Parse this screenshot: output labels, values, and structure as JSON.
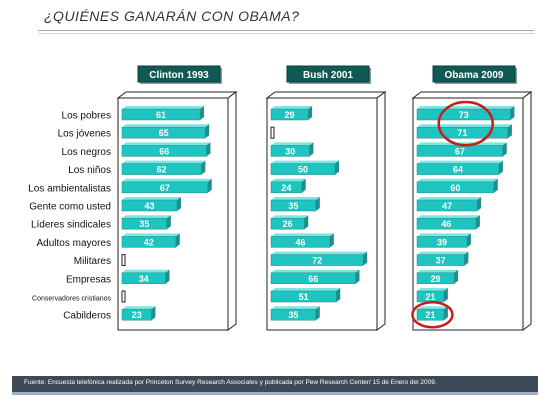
{
  "title": "¿QUIÉNES GANARÁN CON OBAMA?",
  "footer": "Fuente: Encuesta telefónica realizada por Princeton Survey Research Associates y publicada por Pew Research Center/ 15 de Enero del 2009.",
  "colors": {
    "bar": "#1ec4c0",
    "bar_dark": "#1e8f8c",
    "panel_header": "#0f5a55",
    "highlight": "#cc1a1a"
  },
  "chart_data": {
    "type": "bar",
    "orientation": "horizontal",
    "categories": [
      "Los pobres",
      "Los jóvenes",
      "Los negros",
      "Los niños",
      "Los ambientalistas",
      "Gente como usted",
      "Líderes sindicales",
      "Adultos mayores",
      "Militares",
      "Empresas",
      "Conservadores cristianos",
      "Cabilderos"
    ],
    "series": [
      {
        "name": "Clinton 1993",
        "values": [
          61,
          65,
          66,
          62,
          67,
          43,
          35,
          42,
          0,
          34,
          0,
          23
        ]
      },
      {
        "name": "Bush 2001",
        "values": [
          29,
          0,
          30,
          50,
          24,
          35,
          26,
          46,
          72,
          66,
          51,
          35
        ]
      },
      {
        "name": "Obama  2009",
        "values": [
          73,
          71,
          67,
          64,
          60,
          47,
          46,
          39,
          37,
          29,
          21,
          21
        ]
      }
    ],
    "xlim": [
      0,
      75
    ],
    "grid": false,
    "annotations": [
      {
        "series": "Obama  2009",
        "categories": [
          "Los pobres",
          "Los jóvenes"
        ],
        "mark": "red circle"
      },
      {
        "series": "Obama  2009",
        "categories": [
          "Cabilderos"
        ],
        "mark": "red circle"
      }
    ]
  }
}
